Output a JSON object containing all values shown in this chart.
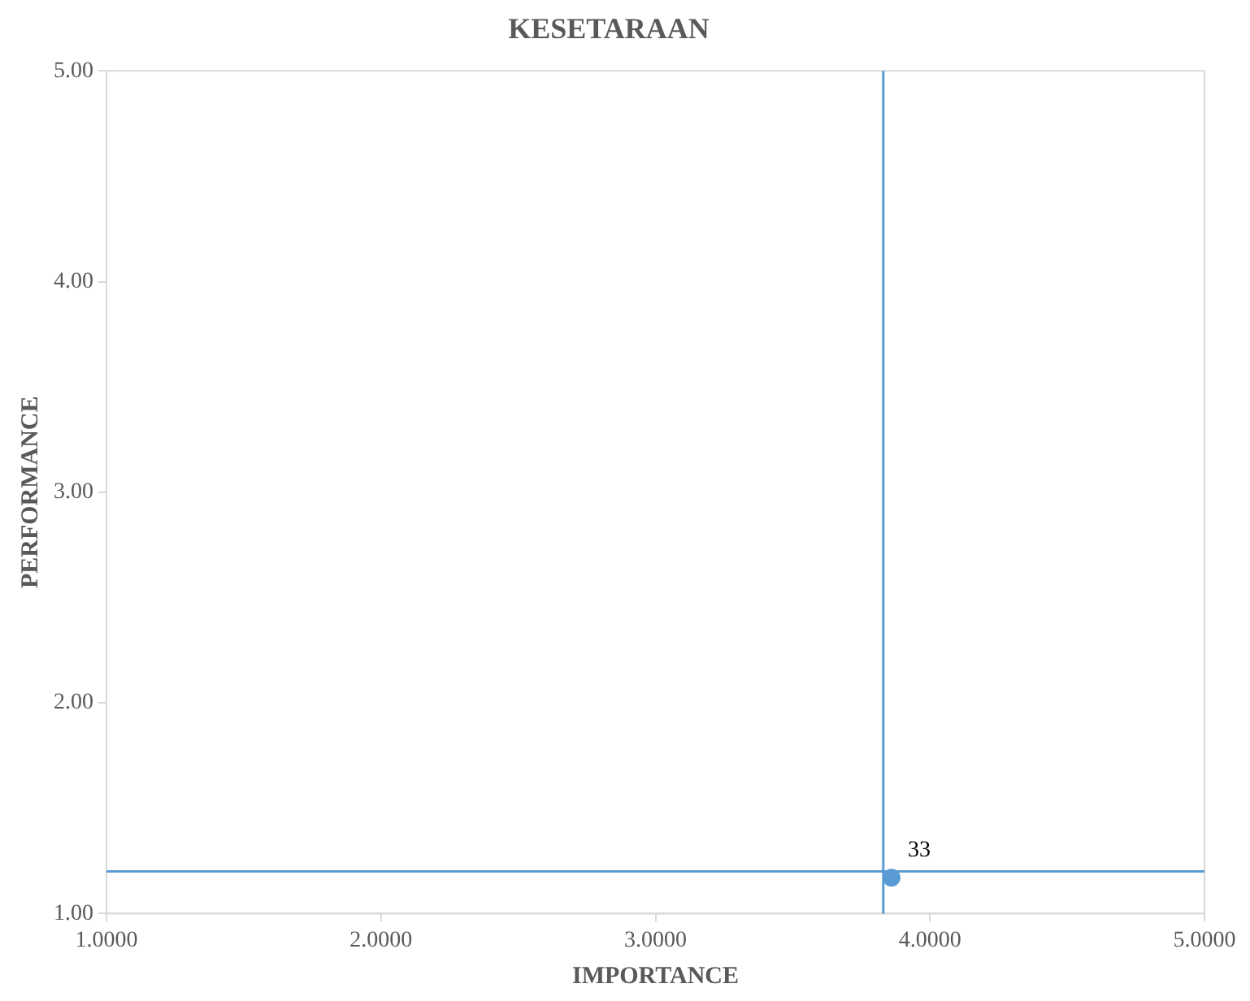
{
  "chart_data": {
    "type": "scatter",
    "title": "KESETARAAN",
    "xlabel": "IMPORTANCE",
    "ylabel": "PERFORMANCE",
    "x": [
      3.86
    ],
    "series": [
      {
        "color": "#5b9bd5",
        "values": [
          1.17
        ]
      }
    ],
    "xlim": [
      1,
      5
    ],
    "ylim": [
      1,
      5
    ],
    "xticks": [
      {
        "value": 1,
        "label": "1.0000"
      },
      {
        "value": 2,
        "label": "2.0000"
      },
      {
        "value": 3,
        "label": "3.0000"
      },
      {
        "value": 4,
        "label": "4.0000"
      },
      {
        "value": 5,
        "label": "5.0000"
      }
    ],
    "yticks": [
      {
        "value": 1,
        "label": "1.00"
      },
      {
        "value": 2,
        "label": "2.00"
      },
      {
        "value": 3,
        "label": "3.00"
      },
      {
        "value": 4,
        "label": "4.00"
      },
      {
        "value": 5,
        "label": "5.00"
      }
    ],
    "ref_lines": [
      {
        "axis": "x",
        "value": 3.83,
        "color": "#5b9bd5"
      },
      {
        "axis": "y",
        "value": 1.2,
        "color": "#5b9bd5"
      }
    ],
    "annotations": [
      {
        "text": "33",
        "x": 3.86,
        "y": 1.17
      }
    ],
    "marker": "circle",
    "grid": false,
    "legend": false
  }
}
